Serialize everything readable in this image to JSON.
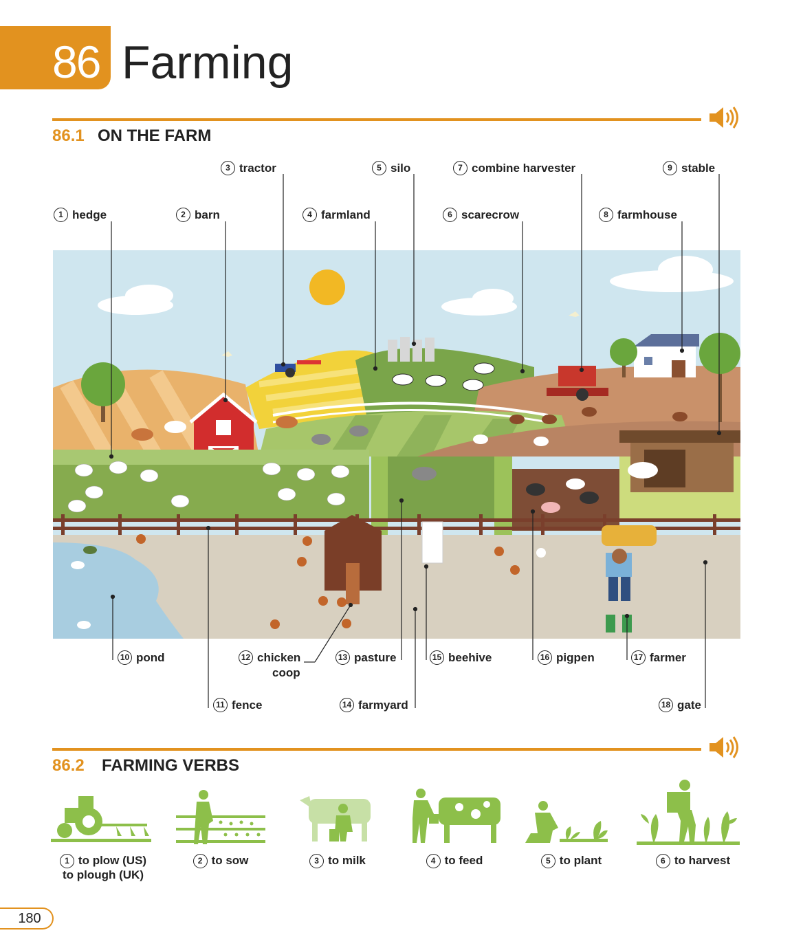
{
  "unit": {
    "number": "86",
    "title": "Farming"
  },
  "sections": [
    {
      "number": "86.1",
      "title": "ON THE FARM"
    },
    {
      "number": "86.2",
      "title": "FARMING VERBS"
    }
  ],
  "farm_labels": [
    {
      "num": "1",
      "text": "hedge"
    },
    {
      "num": "2",
      "text": "barn"
    },
    {
      "num": "3",
      "text": "tractor"
    },
    {
      "num": "4",
      "text": "farmland"
    },
    {
      "num": "5",
      "text": "silo"
    },
    {
      "num": "6",
      "text": "scarecrow"
    },
    {
      "num": "7",
      "text": "combine harvester"
    },
    {
      "num": "8",
      "text": "farmhouse"
    },
    {
      "num": "9",
      "text": "stable"
    },
    {
      "num": "10",
      "text": "pond"
    },
    {
      "num": "11",
      "text": "fence"
    },
    {
      "num": "12",
      "text": "chicken",
      "text2": "coop"
    },
    {
      "num": "13",
      "text": "pasture"
    },
    {
      "num": "14",
      "text": "farmyard"
    },
    {
      "num": "15",
      "text": "beehive"
    },
    {
      "num": "16",
      "text": "pigpen"
    },
    {
      "num": "17",
      "text": "farmer"
    },
    {
      "num": "18",
      "text": "gate"
    }
  ],
  "verbs": [
    {
      "num": "1",
      "text": "to plow (US)",
      "text2": "to plough (UK)"
    },
    {
      "num": "2",
      "text": "to sow"
    },
    {
      "num": "3",
      "text": "to milk"
    },
    {
      "num": "4",
      "text": "to feed"
    },
    {
      "num": "5",
      "text": "to plant"
    },
    {
      "num": "6",
      "text": "to harvest"
    }
  ],
  "page_number": "180",
  "icons": [
    "speaker-icon",
    "plow-tractor-icon",
    "sow-icon",
    "milk-icon",
    "feed-icon",
    "plant-icon",
    "harvest-icon"
  ],
  "colors": {
    "accent": "#e2921f",
    "verb_green": "#8dbf4a"
  }
}
